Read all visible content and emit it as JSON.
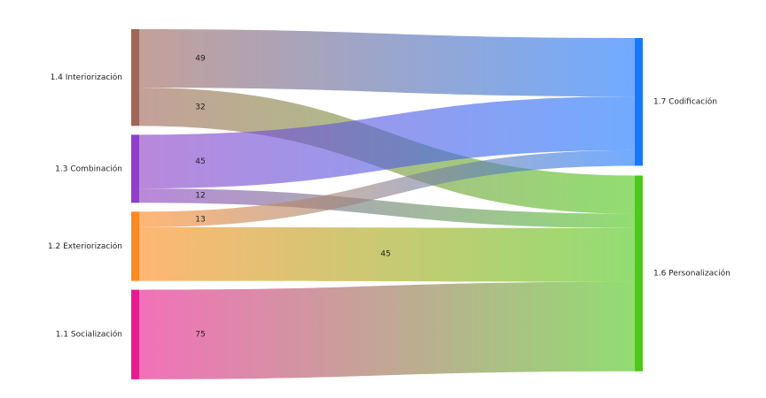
{
  "chart_data": {
    "type": "sankey",
    "nodes": [
      {
        "name": "1.4 Interiorización",
        "color": "#a0665a"
      },
      {
        "name": "1.3  Combinación",
        "color": "#8e3fc6"
      },
      {
        "name": "1.2 Exteriorización",
        "color": "#ff8a1f"
      },
      {
        "name": "1.1  Socialización",
        "color": "#ea1a8e"
      },
      {
        "name": "1.7 Codificación",
        "color": "#1a78ff"
      },
      {
        "name": "1.6 Personalización",
        "color": "#4ec81a"
      }
    ],
    "links": [
      {
        "source": 0,
        "target": 4,
        "value": 49
      },
      {
        "source": 0,
        "target": 5,
        "value": 32
      },
      {
        "source": 1,
        "target": 4,
        "value": 45
      },
      {
        "source": 1,
        "target": 5,
        "value": 12
      },
      {
        "source": 2,
        "target": 4,
        "value": 13
      },
      {
        "source": 2,
        "target": 5,
        "value": 45
      },
      {
        "source": 3,
        "target": 5,
        "value": 75
      }
    ]
  }
}
